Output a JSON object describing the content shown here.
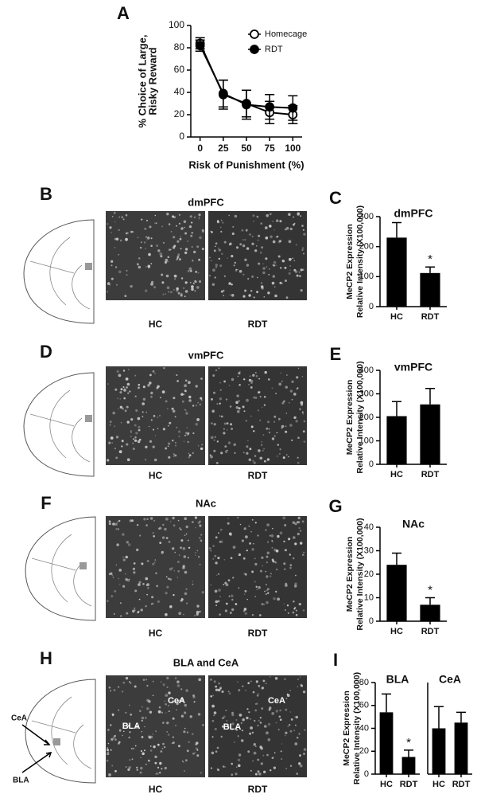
{
  "figure": {
    "panel_labels": [
      "A",
      "B",
      "C",
      "D",
      "E",
      "F",
      "G",
      "H",
      "I"
    ],
    "micrographs": [
      {
        "title": "dmPFC",
        "labels": [
          "HC",
          "RDT"
        ]
      },
      {
        "title": "vmPFC",
        "labels": [
          "HC",
          "RDT"
        ]
      },
      {
        "title": "NAc",
        "labels": [
          "HC",
          "RDT"
        ]
      },
      {
        "title": "BLA and CeA",
        "labels": [
          "HC",
          "RDT"
        ],
        "regions": [
          "CeA",
          "BLA",
          "CeA",
          "BLA"
        ]
      }
    ],
    "atlas_labels": [
      "CeA",
      "BLA"
    ]
  },
  "chart_data": [
    {
      "type": "line",
      "xlabel": "Risk of Punishment (%)",
      "ylabel": [
        "% Choice of Large,",
        "Risky Reward"
      ],
      "x": [
        0,
        25,
        50,
        75,
        100
      ],
      "xlim": [
        -10,
        110
      ],
      "xticks": [
        0,
        25,
        50,
        75,
        100
      ],
      "ylim": [
        0,
        100
      ],
      "yticks": [
        0,
        20,
        40,
        60,
        80,
        100
      ],
      "legend": "upper right",
      "series": [
        {
          "name": "Homecage",
          "color": "#000000",
          "marker": "open",
          "values": [
            84,
            38,
            30,
            22,
            20
          ],
          "errors": [
            5,
            13,
            12,
            10,
            8
          ]
        },
        {
          "name": "RDT",
          "color": "#000000",
          "marker": "filled",
          "values": [
            82,
            39,
            29,
            27,
            26
          ],
          "errors": [
            5,
            12,
            13,
            11,
            11
          ]
        }
      ]
    },
    {
      "type": "bar",
      "title": "dmPFC",
      "ylabel": [
        "MeCP2 Expression",
        "Relative Intensity (X100,000)"
      ],
      "categories": [
        "HC",
        "RDT"
      ],
      "values": [
        230,
        112
      ],
      "errors": [
        50,
        20
      ],
      "color": "#000000",
      "ylim": [
        0,
        300
      ],
      "yticks": [
        0,
        100,
        200,
        300
      ],
      "annotations": [
        {
          "text": "*",
          "category": "RDT"
        }
      ]
    },
    {
      "type": "bar",
      "title": "vmPFC",
      "ylabel": [
        "MeCP2 Expression",
        "Relative Intensity (X100,000)"
      ],
      "categories": [
        "HC",
        "RDT"
      ],
      "values": [
        205,
        255
      ],
      "errors": [
        62,
        68
      ],
      "color": "#000000",
      "ylim": [
        0,
        400
      ],
      "yticks": [
        0,
        100,
        200,
        300,
        400
      ]
    },
    {
      "type": "bar",
      "title": "NAc",
      "ylabel": [
        "MeCP2 Expression",
        "Relative Intensity (X100,000)"
      ],
      "categories": [
        "HC",
        "RDT"
      ],
      "values": [
        24,
        7
      ],
      "errors": [
        5,
        3
      ],
      "color": "#000000",
      "ylim": [
        0,
        40
      ],
      "yticks": [
        0,
        10,
        20,
        30,
        40
      ],
      "annotations": [
        {
          "text": "*",
          "category": "RDT"
        }
      ]
    },
    {
      "type": "bar",
      "title": "BLA",
      "ylabel": [
        "MeCP2 Expression",
        "Relative Intensity (X100,000)"
      ],
      "categories": [
        "HC",
        "RDT"
      ],
      "values": [
        54,
        15
      ],
      "errors": [
        16,
        6
      ],
      "color": "#000000",
      "ylim": [
        0,
        80
      ],
      "yticks": [
        0,
        20,
        40,
        60,
        80
      ],
      "annotations": [
        {
          "text": "*",
          "category": "RDT"
        }
      ]
    },
    {
      "type": "bar",
      "title": "CeA",
      "categories": [
        "HC",
        "RDT"
      ],
      "values": [
        40,
        45
      ],
      "errors": [
        19,
        9
      ],
      "color": "#000000",
      "ylim": [
        0,
        80
      ]
    }
  ]
}
